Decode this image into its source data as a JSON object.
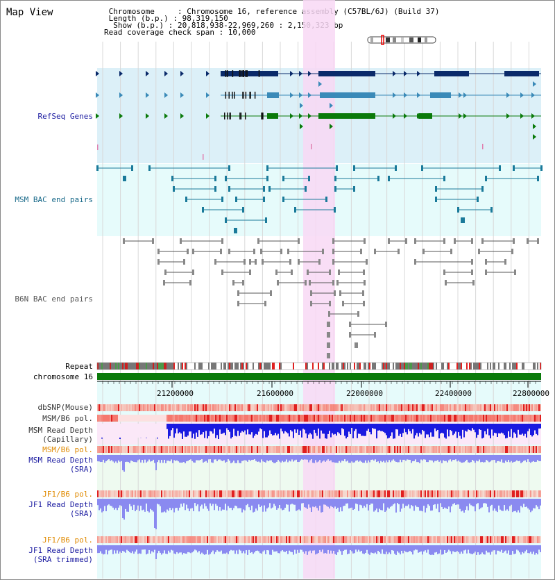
{
  "header": {
    "title": "Map View",
    "info_lines": [
      " Chromosome     : Chromosome 16, reference assembly (C57BL/6J) (Build 37)",
      " Length (b.p.) : 98,319,150",
      "  Show (b.p.) : 20,818,938-22,969,260 : 2,150,323 bp",
      "Read coverage check span : 10,000"
    ]
  },
  "labels": {
    "refseq": "RefSeq Genes",
    "msm_bac": "MSM BAC end pairs",
    "b6n_bac": "B6N BAC end pairs",
    "repeat": "Repeat",
    "chromosome": "chromosome 16",
    "dbsnp": "dbSNP(Mouse)",
    "msm_b6_pol_1": "MSM/B6 pol.",
    "msm_depth_cap_1": "MSM Read Depth",
    "msm_depth_cap_2": "(Capillary)",
    "msm_b6_pol_2": "MSM/B6 pol.",
    "msm_depth_sra_1": "MSM Read Depth",
    "msm_depth_sra_2": "(SRA)",
    "jf1_b6_pol_1": "JF1/B6 pol.",
    "jf1_depth_sra_1": "JF1 Read Depth",
    "jf1_depth_sra_2": "(SRA)",
    "jf1_b6_pol_2": "JF1/B6 pol.",
    "jf1_depth_trim_1": "JF1 Read Depth",
    "jf1_depth_trim_2": "(SRA trimmed)"
  },
  "axis": {
    "ticks": [
      "21200000",
      "21600000",
      "22000000",
      "22400000",
      "22800000"
    ]
  },
  "colors": {
    "refseq_bg": "#dcf0f8",
    "msm_bg": "#e6fbfb",
    "highlight": "#f8d8f4",
    "gene_dark": "#0a2a6a",
    "gene_mid": "#3a8ab8",
    "gene_green": "#0a7a0a",
    "msm_line": "#1a7a9a",
    "b6n_line": "#555555",
    "chromosome_bar": "#0a7a0a",
    "label_blue": "#1a1aa0",
    "label_teal": "#1a6a8a",
    "label_orange": "#e08a00",
    "depth_dark_blue": "#1a1ae0",
    "depth_light_blue": "#8a8af0"
  }
}
